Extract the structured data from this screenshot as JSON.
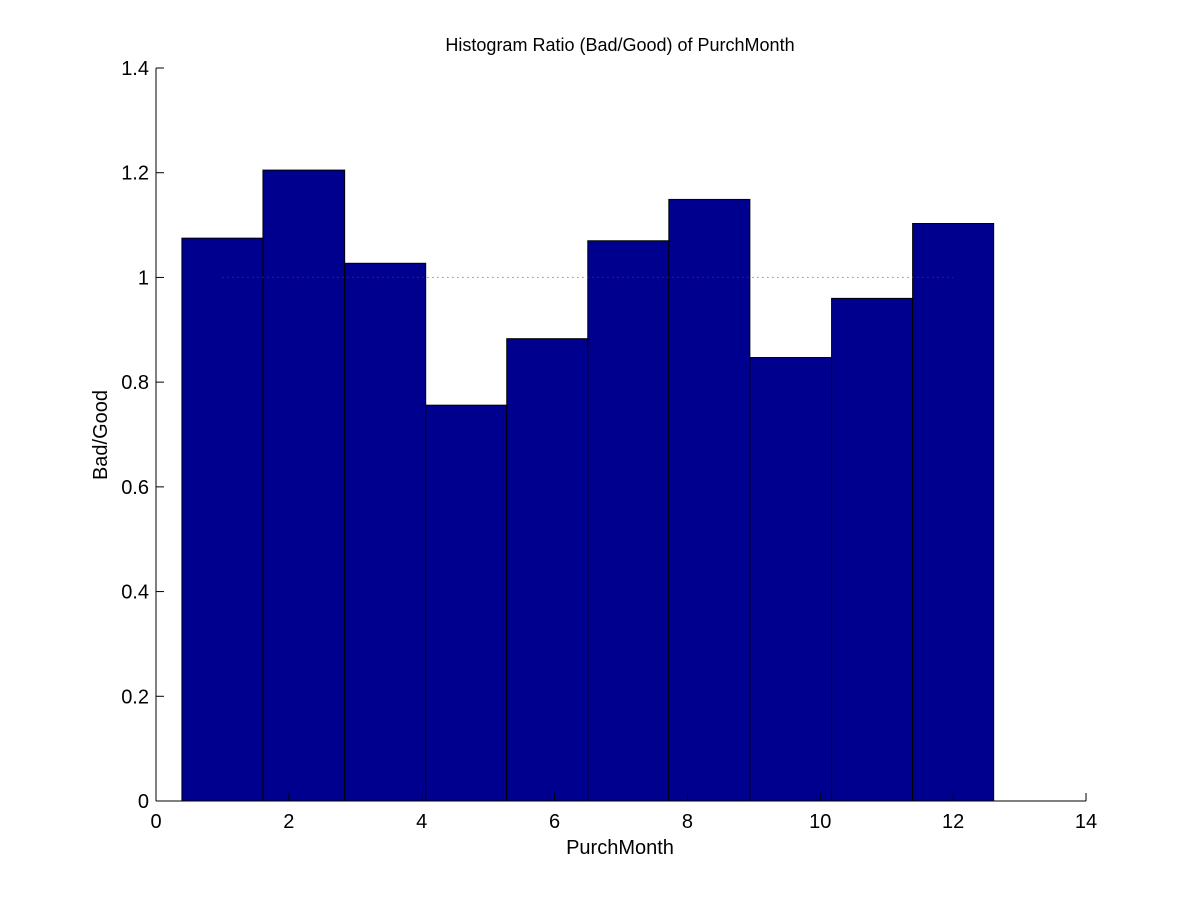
{
  "chart_data": {
    "type": "bar",
    "title": "Histogram Ratio (Bad/Good) of PurchMonth",
    "xlabel": "PurchMonth",
    "ylabel": "Bad/Good",
    "xlim": [
      0,
      14
    ],
    "ylim": [
      0,
      1.4
    ],
    "xticks": [
      "0",
      "2",
      "4",
      "6",
      "8",
      "10",
      "12",
      "14"
    ],
    "yticks": [
      "0",
      "0.2",
      "0.4",
      "0.6",
      "0.8",
      "1",
      "1.2",
      "1.4"
    ],
    "bin_edges": [
      0.39,
      1.61,
      2.84,
      4.06,
      5.28,
      6.5,
      7.72,
      8.94,
      10.17,
      11.39,
      12.61
    ],
    "values": [
      1.075,
      1.205,
      1.027,
      0.756,
      0.883,
      1.07,
      1.149,
      0.847,
      0.96,
      1.103
    ],
    "reference_line": {
      "y": 1,
      "x": [
        1,
        12
      ],
      "style": "dotted",
      "color": "#ff0000"
    },
    "bar_color": "#00008f",
    "grid": false
  }
}
